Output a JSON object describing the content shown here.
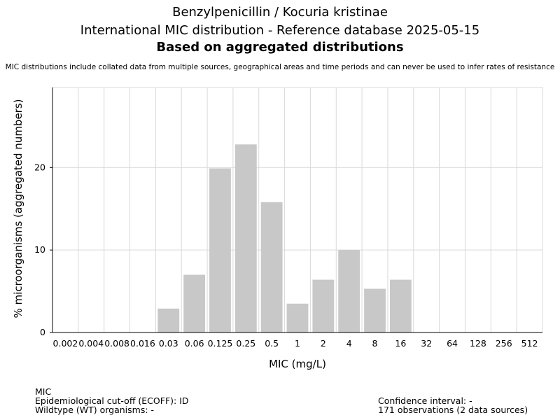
{
  "header": {
    "title_line1": "Benzylpenicillin / Kocuria kristinae",
    "title_line2": "International MIC distribution - Reference database 2025-05-15",
    "title_line3": "Based on aggregated distributions",
    "subtitle": "MIC distributions include collated data from multiple sources, geographical areas and time periods and can never be used to infer rates of resistance"
  },
  "footer": {
    "left_line1": "MIC",
    "left_line2": "Epidemiological cut-off (ECOFF): ID",
    "left_line3": "Wildtype (WT) organisms:  -",
    "right_line1": "Confidence interval: -",
    "right_line2": "171 observations (2 data sources)"
  },
  "colors": {
    "bar": "#c8c8c8",
    "grid": "#d9d9d9",
    "axis": "#000000"
  },
  "chart_data": {
    "type": "bar",
    "xlabel": "MIC (mg/L)",
    "ylabel": "% microorganisms (aggregated numbers)",
    "categories": [
      "0.002",
      "0.004",
      "0.008",
      "0.016",
      "0.03",
      "0.06",
      "0.125",
      "0.25",
      "0.5",
      "1",
      "2",
      "4",
      "8",
      "16",
      "32",
      "64",
      "128",
      "256",
      "512"
    ],
    "values": [
      0,
      0,
      0,
      0,
      2.9,
      7.0,
      19.9,
      22.8,
      15.8,
      3.5,
      6.4,
      10.0,
      5.3,
      6.4,
      0,
      0,
      0,
      0,
      0
    ],
    "ylim": [
      0,
      29.7
    ],
    "yticks": [
      0,
      10,
      20
    ],
    "grid": true
  }
}
